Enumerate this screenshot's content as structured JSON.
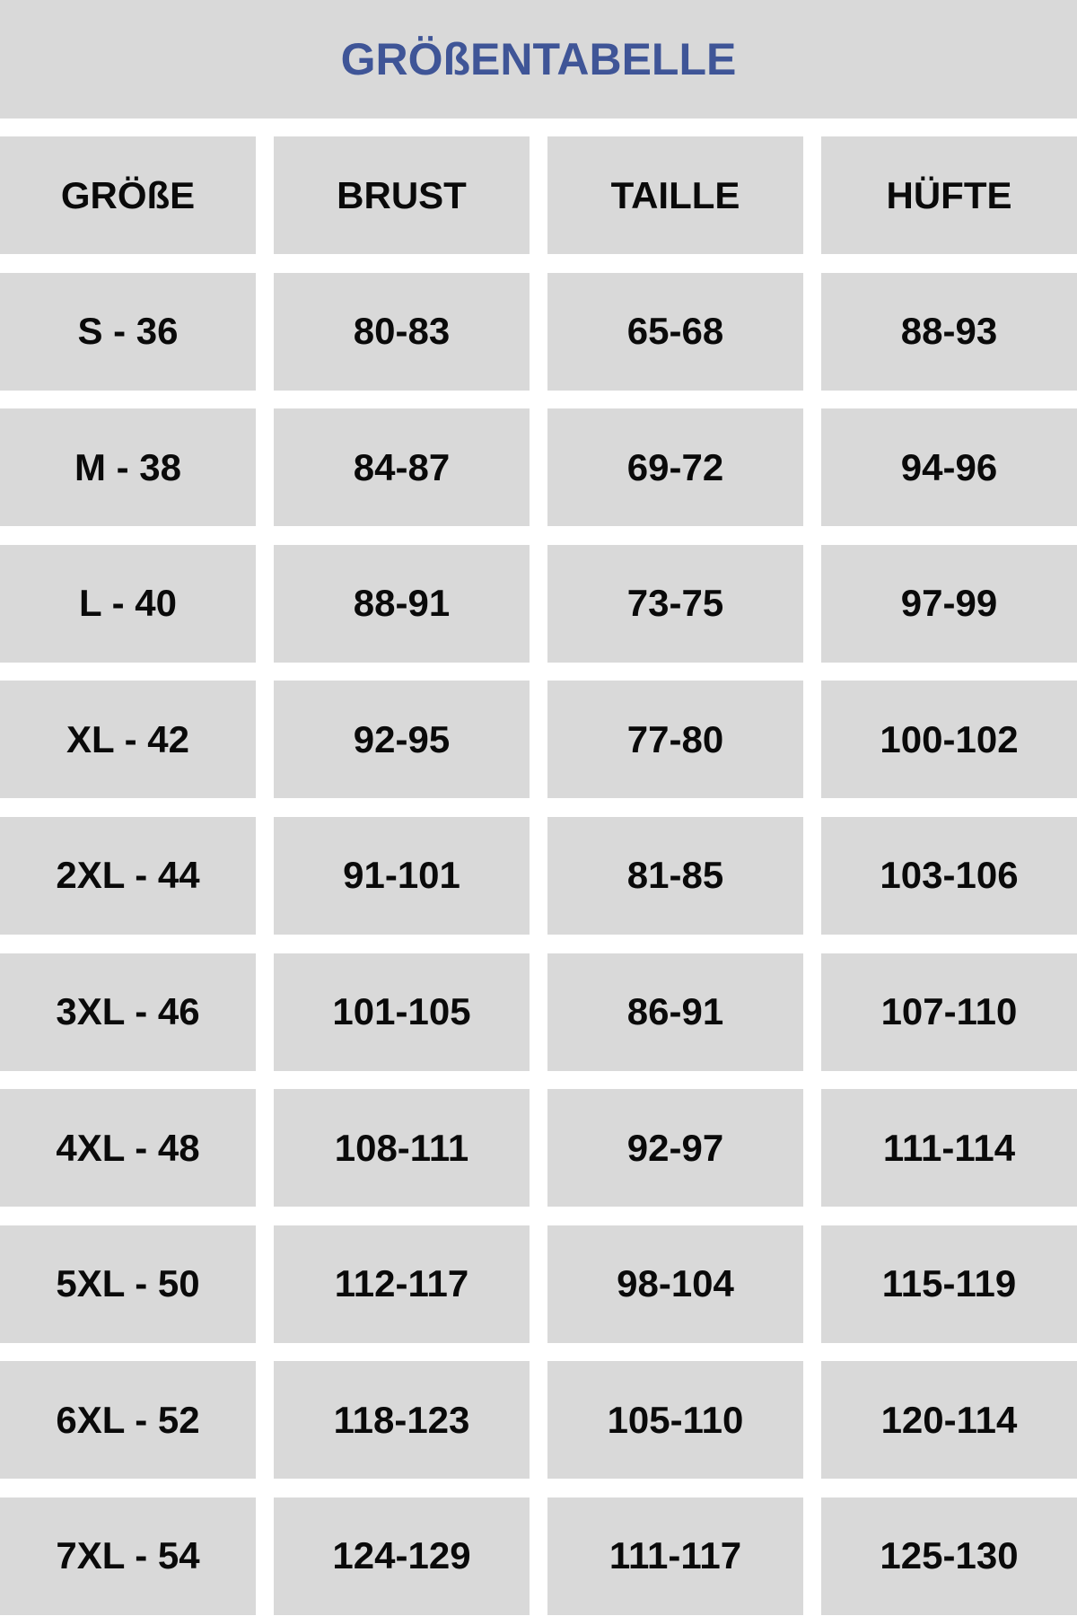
{
  "title": "GRÖßENTABELLE",
  "colors": {
    "title": "#3f5597",
    "cell_background": "#d9d9d9",
    "text": "#0a0a0a"
  },
  "headers": [
    "GRÖßE",
    "BRUST",
    "TAILLE",
    "HÜFTE"
  ],
  "rows": [
    [
      "S - 36",
      "80-83",
      "65-68",
      "88-93"
    ],
    [
      "M - 38",
      "84-87",
      "69-72",
      "94-96"
    ],
    [
      "L - 40",
      "88-91",
      "73-75",
      "97-99"
    ],
    [
      "XL - 42",
      "92-95",
      "77-80",
      "100-102"
    ],
    [
      "2XL - 44",
      "91-101",
      "81-85",
      "103-106"
    ],
    [
      "3XL - 46",
      "101-105",
      "86-91",
      "107-110"
    ],
    [
      "4XL - 48",
      "108-111",
      "92-97",
      "111-114"
    ],
    [
      "5XL - 50",
      "112-117",
      "98-104",
      "115-119"
    ],
    [
      "6XL - 52",
      "118-123",
      "105-110",
      "120-114"
    ],
    [
      "7XL - 54",
      "124-129",
      "111-117",
      "125-130"
    ]
  ]
}
